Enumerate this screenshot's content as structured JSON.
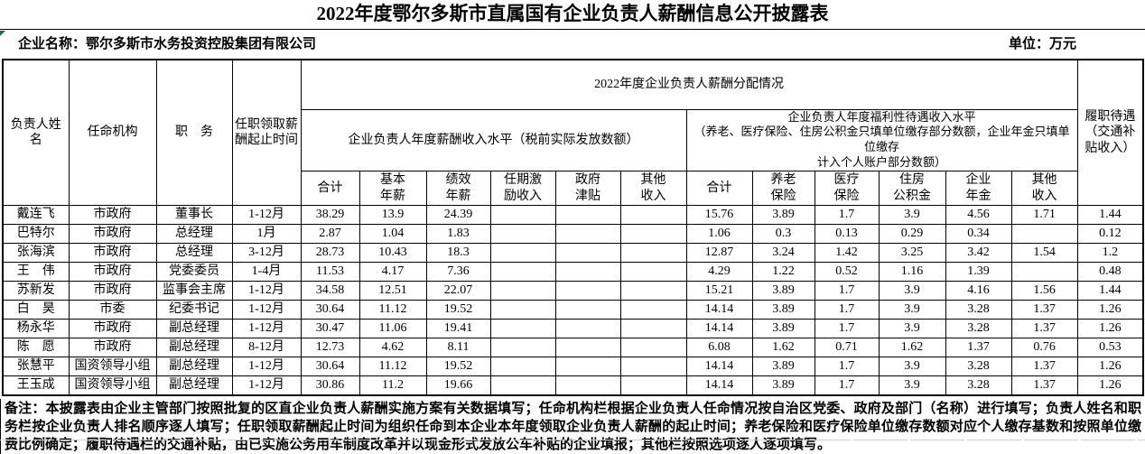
{
  "page": {
    "title": "2022年度鄂尔多斯市直属国有企业负责人薪酬信息公开披露表",
    "company_label": "企业名称：鄂尔多斯市水务投资控股集团有限公司",
    "unit_label": "单位：万元",
    "note": "备注：本披露表由企业主管部门按照批复的区直企业负责人薪酬实施方案有关数据填写；任命机构栏根据企业负责人任命情况按自治区党委、政府及部门（名称）进行填写；负责人姓名和职务栏按企业负责人排名顺序逐人填写；任职领取薪酬起止时间为组织任命到本企业本年度领取企业负责人薪酬的起止时间；养老保险和医疗保险单位缴存数额对应个人缴存基数和按照单位缴费比例确定；履职待遇栏的交通补贴，由已实施公务用车制度改革并以现金形式发放公车补贴的企业填报；其他栏按照选项逐人逐项填写。"
  },
  "table": {
    "header": {
      "col_name": "负责人姓名",
      "col_agency": "任命机构",
      "col_position": "职　务",
      "col_period": "任职领取薪\n酬起止时间",
      "span_top": "2022年度企业负责人薪酬分配情况",
      "group_salary": "企业负责人年度薪酬收入水平（税前实际发放数额）",
      "group_welfare": "企业负责人年度福利性待遇收入水平\n（养老、医疗保险、住房公积金只填单位缴存部分数额，企业年金只填单位缴存\n计入个人账户部分数额）",
      "col_duty": "履职待遇\n（交通补\n贴收入）",
      "sub": [
        "合计",
        "基本\n年薪",
        "绩效\n年薪",
        "任期激\n励收入",
        "政府\n津贴",
        "其他\n收入",
        "合计",
        "养老\n保险",
        "医疗\n保险",
        "住房\n公积金",
        "企业\n年金",
        "其他\n收入"
      ]
    },
    "rows": [
      [
        "戴连飞",
        "市政府",
        "董事长",
        "1-12月",
        "38.29",
        "13.9",
        "24.39",
        "",
        "",
        "",
        "15.76",
        "3.89",
        "1.7",
        "3.9",
        "4.56",
        "1.71",
        "1.44"
      ],
      [
        "巴特尔",
        "市政府",
        "总经理",
        "1月",
        "2.87",
        "1.04",
        "1.83",
        "",
        "",
        "",
        "1.06",
        "0.3",
        "0.13",
        "0.29",
        "0.34",
        "",
        "0.12"
      ],
      [
        "张海滨",
        "市政府",
        "总经理",
        "3-12月",
        "28.73",
        "10.43",
        "18.3",
        "",
        "",
        "",
        "12.87",
        "3.24",
        "1.42",
        "3.25",
        "3.42",
        "1.54",
        "1.2"
      ],
      [
        "王　伟",
        "市政府",
        "党委委员",
        "1-4月",
        "11.53",
        "4.17",
        "7.36",
        "",
        "",
        "",
        "4.29",
        "1.22",
        "0.52",
        "1.16",
        "1.39",
        "",
        "0.48"
      ],
      [
        "苏新发",
        "市政府",
        "监事会主席",
        "1-12月",
        "34.58",
        "12.51",
        "22.07",
        "",
        "",
        "",
        "15.21",
        "3.89",
        "1.7",
        "3.9",
        "4.16",
        "1.56",
        "1.44"
      ],
      [
        "白　昊",
        "市委",
        "纪委书记",
        "1-12月",
        "30.64",
        "11.12",
        "19.52",
        "",
        "",
        "",
        "14.14",
        "3.89",
        "1.7",
        "3.9",
        "3.28",
        "1.37",
        "1.26"
      ],
      [
        "杨永华",
        "市政府",
        "副总经理",
        "1-12月",
        "30.47",
        "11.06",
        "19.41",
        "",
        "",
        "",
        "14.14",
        "3.89",
        "1.7",
        "3.9",
        "3.28",
        "1.37",
        "1.26"
      ],
      [
        "陈　愿",
        "市政府",
        "副总经理",
        "8-12月",
        "12.73",
        "4.62",
        "8.11",
        "",
        "",
        "",
        "6.08",
        "1.62",
        "0.71",
        "1.62",
        "1.37",
        "0.76",
        "0.53"
      ],
      [
        "张慧平",
        "国资领导小组",
        "副总经理",
        "1-12月",
        "30.64",
        "11.12",
        "19.52",
        "",
        "",
        "",
        "14.14",
        "3.89",
        "1.7",
        "3.9",
        "3.28",
        "1.37",
        "1.26"
      ],
      [
        "王玉成",
        "国资领导小组",
        "副总经理",
        "1-12月",
        "30.86",
        "11.2",
        "19.66",
        "",
        "",
        "",
        "14.14",
        "3.89",
        "1.7",
        "3.9",
        "3.28",
        "1.37",
        "1.26"
      ]
    ]
  }
}
